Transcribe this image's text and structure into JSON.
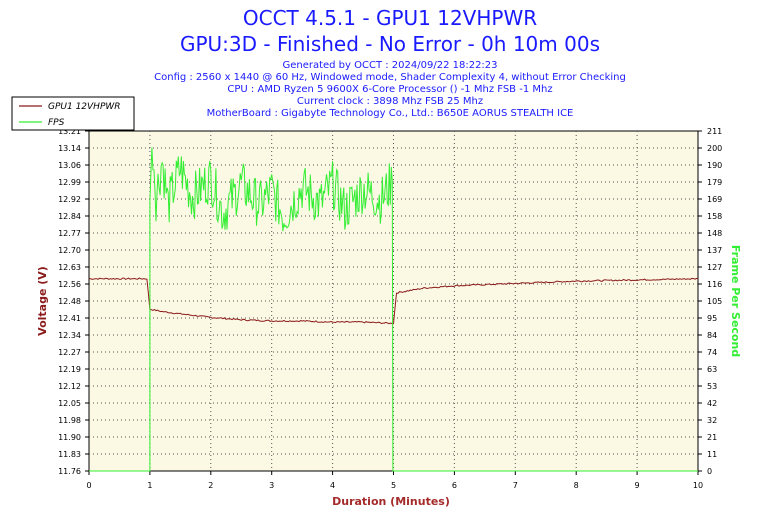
{
  "header": {
    "title": "OCCT 4.5.1 - GPU1 12VHPWR",
    "subtitle": "GPU:3D - Finished - No Error - 0h 10m 00s",
    "info": [
      "Generated by OCCT : 2024/09/22 18:22:23",
      "Config : 2560 x 1440 @ 60 Hz, Windowed mode, Shader Complexity 4, without Error Checking",
      "CPU : AMD Ryzen 5 9600X 6-Core Processor () -1 Mhz FSB -1 Mhz",
      "Current clock : 3898 Mhz FSB 25 Mhz",
      "MotherBoard : Gigabyte Technology Co., Ltd.: B650E AORUS STEALTH ICE"
    ]
  },
  "colors": {
    "title": "#1a1aff",
    "voltage": "#8b1a1a",
    "fps": "#33ee33",
    "plot_bg": "#fbf8e3",
    "axis_label": "#a52a2a"
  },
  "chart_data": {
    "type": "line",
    "xlabel": "Duration (Minutes)",
    "ylabel_left": "Voltage (V)",
    "ylabel_right": "Frame Per Second",
    "xlim": [
      0,
      10
    ],
    "ylim_left": [
      11.76,
      13.21
    ],
    "ylim_right": [
      0,
      211
    ],
    "x_ticks": [
      "0",
      "1",
      "2",
      "3",
      "4",
      "5",
      "6",
      "7",
      "8",
      "9",
      "10"
    ],
    "y_left_ticks": [
      "13.21",
      "13.14",
      "13.06",
      "12.99",
      "12.92",
      "12.84",
      "12.77",
      "12.70",
      "12.63",
      "12.56",
      "12.48",
      "12.41",
      "12.34",
      "12.27",
      "12.19",
      "12.12",
      "12.05",
      "11.98",
      "11.90",
      "11.83",
      "11.76"
    ],
    "y_right_ticks": [
      "211",
      "200",
      "190",
      "179",
      "169",
      "158",
      "148",
      "137",
      "127",
      "116",
      "105",
      "95",
      "84",
      "74",
      "63",
      "53",
      "42",
      "32",
      "21",
      "11",
      "0"
    ],
    "legend": [
      "GPU1 12VHPWR",
      "FPS"
    ],
    "legend_position": "top-left",
    "grid": true,
    "series": [
      {
        "name": "GPU1 12VHPWR",
        "axis": "left",
        "points": [
          [
            0,
            12.58
          ],
          [
            0.5,
            12.58
          ],
          [
            0.95,
            12.58
          ],
          [
            1.0,
            12.45
          ],
          [
            1.2,
            12.44
          ],
          [
            1.5,
            12.43
          ],
          [
            2.0,
            12.415
          ],
          [
            2.5,
            12.405
          ],
          [
            3.0,
            12.4
          ],
          [
            3.5,
            12.4
          ],
          [
            4.0,
            12.395
          ],
          [
            4.5,
            12.395
          ],
          [
            4.95,
            12.39
          ],
          [
            5.0,
            12.39
          ],
          [
            5.05,
            12.52
          ],
          [
            5.5,
            12.54
          ],
          [
            6.0,
            12.55
          ],
          [
            7.0,
            12.56
          ],
          [
            8.0,
            12.57
          ],
          [
            9.0,
            12.575
          ],
          [
            10.0,
            12.58
          ]
        ]
      },
      {
        "name": "FPS",
        "axis": "right",
        "points": [
          [
            0,
            0
          ],
          [
            1.0,
            0
          ],
          [
            1.0,
            179
          ],
          [
            1.05,
            200
          ],
          [
            1.1,
            170
          ],
          [
            1.2,
            193
          ],
          [
            1.3,
            165
          ],
          [
            1.5,
            188
          ],
          [
            1.7,
            170
          ],
          [
            2.0,
            182
          ],
          [
            2.2,
            160
          ],
          [
            2.5,
            178
          ],
          [
            2.8,
            165
          ],
          [
            3.0,
            174
          ],
          [
            3.2,
            158
          ],
          [
            3.5,
            176
          ],
          [
            3.8,
            166
          ],
          [
            4.0,
            178
          ],
          [
            4.2,
            162
          ],
          [
            4.5,
            175
          ],
          [
            4.8,
            168
          ],
          [
            4.98,
            180
          ],
          [
            4.99,
            0
          ],
          [
            10,
            0
          ]
        ],
        "range_min": 148,
        "range_max": 205
      }
    ]
  }
}
